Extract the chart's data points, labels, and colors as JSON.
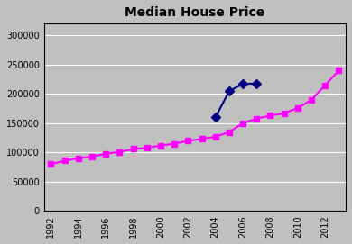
{
  "title": "Median House Price",
  "background_color": "#c0c0c0",
  "magenta_years": [
    1992,
    1993,
    1994,
    1995,
    1996,
    1997,
    1998,
    1999,
    2000,
    2001,
    2002,
    2003,
    2004,
    2005,
    2006,
    2007,
    2008,
    2009,
    2010,
    2011,
    2012,
    2013
  ],
  "magenta_values": [
    80000,
    86000,
    90000,
    93000,
    98000,
    101000,
    106000,
    108000,
    112000,
    115000,
    120000,
    123000,
    127000,
    135000,
    150000,
    158000,
    163000,
    167000,
    176000,
    190000,
    215000,
    240000
  ],
  "magenta_color": "#ff00ff",
  "magenta_marker": "s",
  "navy_years": [
    2004,
    2005,
    2006,
    2007
  ],
  "navy_values": [
    160000,
    205000,
    217000,
    218000
  ],
  "navy_color": "#000080",
  "navy_marker": "D",
  "linewidth": 1.5,
  "markersize": 5,
  "ylim": [
    0,
    320000
  ],
  "yticks": [
    0,
    50000,
    100000,
    150000,
    200000,
    250000,
    300000
  ],
  "xlim": [
    1991.5,
    2013.5
  ],
  "xtick_years": [
    1992,
    1994,
    1996,
    1998,
    2000,
    2002,
    2004,
    2006,
    2008,
    2010,
    2012
  ],
  "title_fontsize": 10,
  "tick_fontsize": 7
}
